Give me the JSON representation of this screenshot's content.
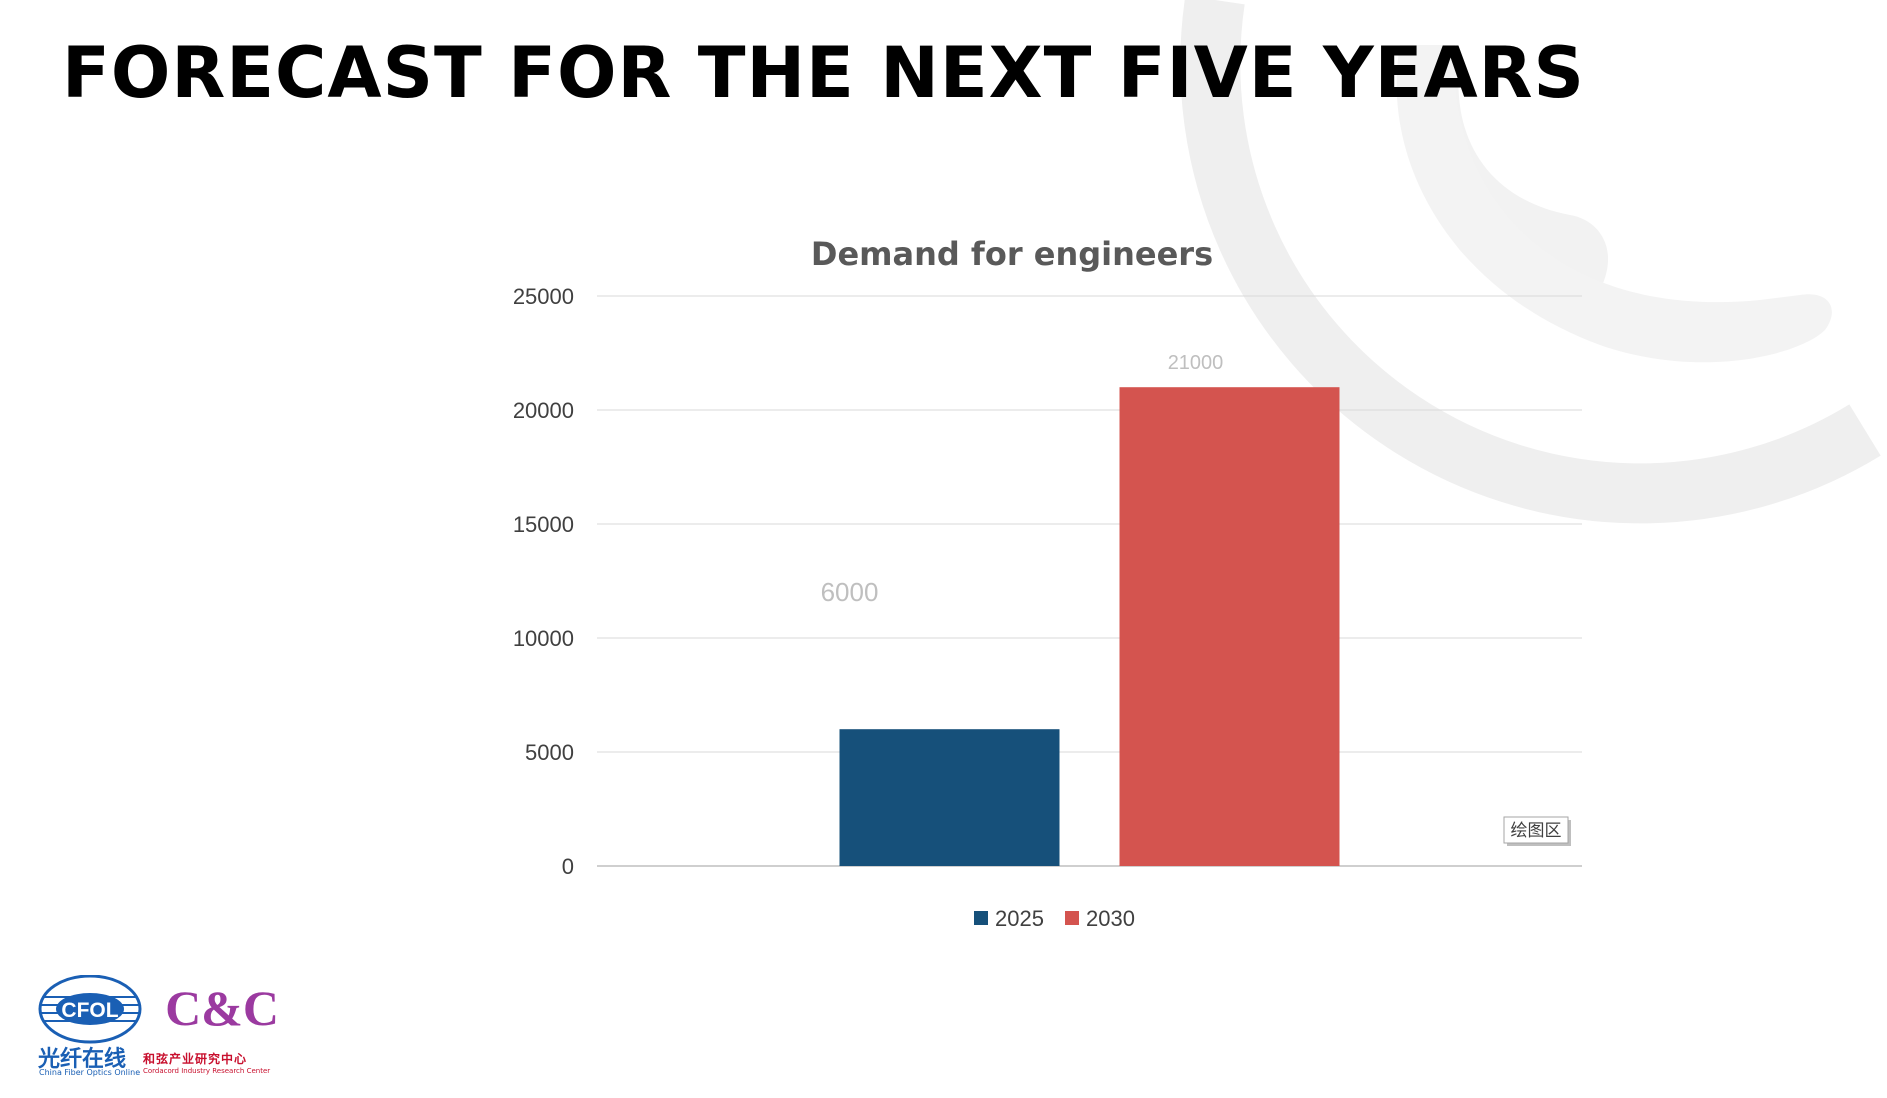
{
  "slide": {
    "title": "FORECAST FOR THE NEXT FIVE YEARS"
  },
  "chart_data": {
    "type": "bar",
    "title": "Demand for engineers",
    "categories": [
      ""
    ],
    "series": [
      {
        "name": "2025",
        "values": [
          6000
        ],
        "color": "#16507a",
        "label": "6000"
      },
      {
        "name": "2030",
        "values": [
          21000
        ],
        "color": "#d4544f",
        "label": "21000"
      }
    ],
    "ylim": [
      0,
      25000
    ],
    "yticks": [
      "0",
      "5000",
      "10000",
      "15000",
      "20000",
      "25000"
    ],
    "grid": true,
    "legend": "bottom",
    "plot_area_tag": "绘图区"
  },
  "logos": {
    "cfol": {
      "mark": "CFOL",
      "cn": "光纤在线",
      "en": "China Fiber Optics Online",
      "color": "#1a5fb4"
    },
    "cc": {
      "mark": "C&C",
      "cn": "和弦产业研究中心",
      "en": "Cordacord Industry Research Center",
      "color": "#c8102e"
    }
  }
}
